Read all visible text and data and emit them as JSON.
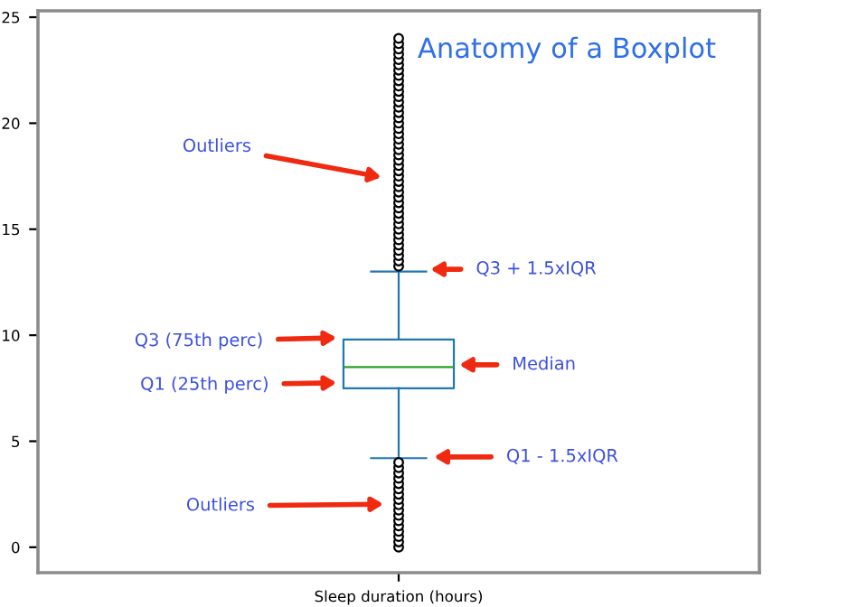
{
  "chart_data": {
    "type": "box",
    "title": "Anatomy of a Boxplot",
    "categories": [
      "Sleep duration (hours)"
    ],
    "boxes": [
      {
        "low": 4.2,
        "q1": 7.5,
        "median": 8.5,
        "q3": 9.8,
        "high": 13,
        "outliers": [
          0,
          0.25,
          0.5,
          0.75,
          1,
          1.25,
          1.5,
          1.75,
          2,
          2.25,
          2.5,
          2.75,
          3,
          3.25,
          3.5,
          3.75,
          4,
          13.25,
          13.5,
          13.75,
          14,
          14.25,
          14.5,
          14.75,
          15,
          15.25,
          15.5,
          15.75,
          16,
          16.25,
          16.5,
          16.75,
          17,
          17.25,
          17.5,
          17.75,
          18,
          18.25,
          18.5,
          18.75,
          19,
          19.25,
          19.5,
          19.75,
          20,
          20.25,
          20.5,
          20.75,
          21,
          21.25,
          21.5,
          21.75,
          22,
          22.25,
          22.5,
          22.75,
          23,
          23.25,
          23.5,
          23.75,
          24
        ]
      }
    ],
    "color": "#1f77b4",
    "ylim": [
      -1.2,
      25.3
    ],
    "yticks": [
      0,
      5,
      10,
      15,
      20,
      25
    ],
    "grid": false,
    "annotations": [
      "Outliers",
      "Q3 + 1.5xIQR",
      "Q3 (75th perc)",
      "Q1 (25th perc)",
      "Median",
      "Q1 - 1.5xIQR",
      "Outliers"
    ]
  }
}
